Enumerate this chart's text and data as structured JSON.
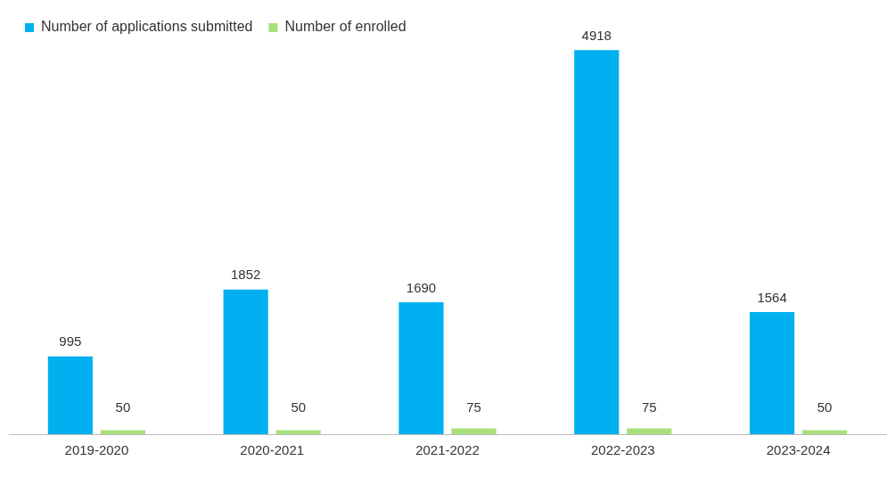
{
  "chart_data": {
    "type": "bar",
    "categories": [
      "2019-2020",
      "2020-2021",
      "2021-2022",
      "2022-2023",
      "2023-2024"
    ],
    "series": [
      {
        "name": "Number of applications submitted",
        "color": "#00b0f0",
        "values": [
          995,
          1852,
          1690,
          4918,
          1564
        ]
      },
      {
        "name": "Number of enrolled",
        "color": "#a9e07a",
        "values": [
          50,
          50,
          75,
          75,
          50
        ]
      }
    ],
    "tick_labels": "x",
    "data_labels": true,
    "legend": "top left",
    "grid": false
  }
}
